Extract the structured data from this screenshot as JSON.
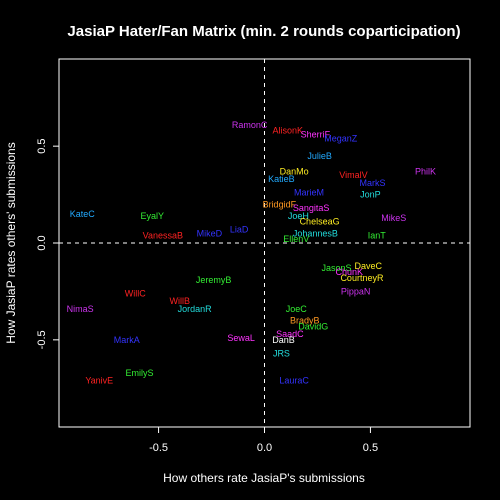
{
  "chart_data": {
    "type": "scatter",
    "title": "JasiaP Hater/Fan Matrix (min. 2 rounds coparticipation)",
    "xlabel": "How others rate JasiaP's submissions",
    "ylabel": "How JasiaP rates others' submissions",
    "xlim": [
      -0.97,
      0.97
    ],
    "ylim": [
      -0.95,
      0.95
    ],
    "x_ticks": [
      -0.5,
      0.0,
      0.5
    ],
    "x_tick_labels": [
      "-0.5",
      "0.0",
      "0.5"
    ],
    "y_ticks": [
      -0.5,
      0.0,
      0.5
    ],
    "y_tick_labels": [
      "-0.5",
      "0.0",
      "0.5"
    ],
    "reference_lines": {
      "x": 0,
      "y": 0,
      "style": "dashed"
    },
    "grid": false,
    "background": "#000000",
    "foreground": "#ffffff",
    "points": [
      {
        "label": "RamonC",
        "x": -0.07,
        "y": 0.61,
        "color": "#cc33ee"
      },
      {
        "label": "AlisonK",
        "x": 0.11,
        "y": 0.58,
        "color": "#ff2222"
      },
      {
        "label": "SherriF",
        "x": 0.24,
        "y": 0.56,
        "color": "#ff33ff"
      },
      {
        "label": "MeganZ",
        "x": 0.36,
        "y": 0.54,
        "color": "#3333ff"
      },
      {
        "label": "JulieB",
        "x": 0.26,
        "y": 0.45,
        "color": "#22aaff"
      },
      {
        "label": "PhilK",
        "x": 0.76,
        "y": 0.37,
        "color": "#cc33ee"
      },
      {
        "label": "DanMo",
        "x": 0.14,
        "y": 0.37,
        "color": "#ffee22"
      },
      {
        "label": "VimalV",
        "x": 0.42,
        "y": 0.35,
        "color": "#ff2222"
      },
      {
        "label": "KatieB",
        "x": 0.08,
        "y": 0.33,
        "color": "#22aaff"
      },
      {
        "label": "MarkS",
        "x": 0.51,
        "y": 0.31,
        "color": "#3333ff"
      },
      {
        "label": "MarieM",
        "x": 0.21,
        "y": 0.26,
        "color": "#3333ff"
      },
      {
        "label": "JonP",
        "x": 0.5,
        "y": 0.25,
        "color": "#22dddd"
      },
      {
        "label": "BridgidF",
        "x": 0.07,
        "y": 0.2,
        "color": "#ff9922"
      },
      {
        "label": "SangitaS",
        "x": 0.22,
        "y": 0.18,
        "color": "#ff33ff"
      },
      {
        "label": "KateC",
        "x": -0.86,
        "y": 0.15,
        "color": "#22aaff"
      },
      {
        "label": "EyalY",
        "x": -0.53,
        "y": 0.14,
        "color": "#33ee33"
      },
      {
        "label": "JoeH",
        "x": 0.16,
        "y": 0.14,
        "color": "#22dddd"
      },
      {
        "label": "MikeS",
        "x": 0.61,
        "y": 0.13,
        "color": "#cc33ee"
      },
      {
        "label": "ChelseaG",
        "x": 0.26,
        "y": 0.11,
        "color": "#ffee22"
      },
      {
        "label": "LiaD",
        "x": -0.12,
        "y": 0.07,
        "color": "#3333ff"
      },
      {
        "label": "JohannesB",
        "x": 0.24,
        "y": 0.05,
        "color": "#22dddd"
      },
      {
        "label": "MikeD",
        "x": -0.26,
        "y": 0.05,
        "color": "#3333ff"
      },
      {
        "label": "VanessaB",
        "x": -0.48,
        "y": 0.04,
        "color": "#ff2222"
      },
      {
        "label": "IanT",
        "x": 0.53,
        "y": 0.04,
        "color": "#33ee33"
      },
      {
        "label": "EllenV",
        "x": 0.15,
        "y": 0.02,
        "color": "#33ee33"
      },
      {
        "label": "DaveC",
        "x": 0.49,
        "y": -0.12,
        "color": "#ffee22"
      },
      {
        "label": "JasonS",
        "x": 0.34,
        "y": -0.13,
        "color": "#33ee33"
      },
      {
        "label": "ChunK",
        "x": 0.4,
        "y": -0.15,
        "color": "#ff33ff"
      },
      {
        "label": "CourtneyR",
        "x": 0.46,
        "y": -0.18,
        "color": "#ffee22"
      },
      {
        "label": "JeremyB",
        "x": -0.24,
        "y": -0.19,
        "color": "#33ee33"
      },
      {
        "label": "WillC",
        "x": -0.61,
        "y": -0.26,
        "color": "#ff2222"
      },
      {
        "label": "PippaN",
        "x": 0.43,
        "y": -0.25,
        "color": "#cc33ee"
      },
      {
        "label": "WillB",
        "x": -0.4,
        "y": -0.3,
        "color": "#ff2222"
      },
      {
        "label": "NimaS",
        "x": -0.87,
        "y": -0.34,
        "color": "#cc33ee"
      },
      {
        "label": "JordanR",
        "x": -0.33,
        "y": -0.34,
        "color": "#22dddd"
      },
      {
        "label": "JoeC",
        "x": 0.15,
        "y": -0.34,
        "color": "#33ee33"
      },
      {
        "label": "BradyB",
        "x": 0.19,
        "y": -0.4,
        "color": "#ff9922"
      },
      {
        "label": "DavidG",
        "x": 0.23,
        "y": -0.43,
        "color": "#33ee33"
      },
      {
        "label": "SaadC",
        "x": 0.12,
        "y": -0.47,
        "color": "#ff33ff"
      },
      {
        "label": "SewaL",
        "x": -0.11,
        "y": -0.49,
        "color": "#ff33ff"
      },
      {
        "label": "DanB",
        "x": 0.09,
        "y": -0.5,
        "color": "#ffffff"
      },
      {
        "label": "MarkA",
        "x": -0.65,
        "y": -0.5,
        "color": "#3333ff"
      },
      {
        "label": "JRS",
        "x": 0.08,
        "y": -0.57,
        "color": "#22dddd"
      },
      {
        "label": "EmilyS",
        "x": -0.59,
        "y": -0.67,
        "color": "#33ee33"
      },
      {
        "label": "LauraC",
        "x": 0.14,
        "y": -0.71,
        "color": "#3333ff"
      },
      {
        "label": "YanivE",
        "x": -0.78,
        "y": -0.71,
        "color": "#ff2222"
      }
    ]
  }
}
